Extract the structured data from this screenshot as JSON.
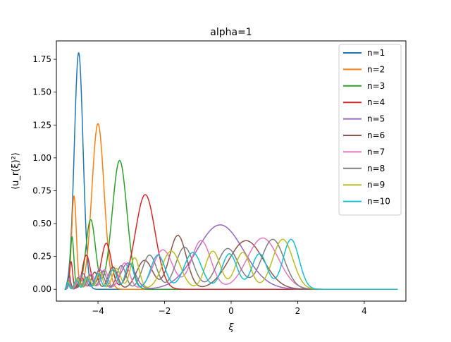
{
  "chart_data": {
    "type": "line",
    "title": "alpha=1",
    "xlabel": "ξ",
    "ylabel": "⟨u_r(ξ)²⟩",
    "xlim": [
      -5.25,
      5.25
    ],
    "ylim": [
      -0.09,
      1.89
    ],
    "x_ticks": [
      -4,
      -2,
      0,
      2,
      4
    ],
    "x_tick_labels": [
      "−4",
      "−2",
      "0",
      "2",
      "4"
    ],
    "y_ticks": [
      0.0,
      0.25,
      0.5,
      0.75,
      1.0,
      1.25,
      1.5,
      1.75
    ],
    "y_tick_labels": [
      "0.00",
      "0.25",
      "0.50",
      "0.75",
      "1.00",
      "1.25",
      "1.50",
      "1.75"
    ],
    "grid": false,
    "legend_position": "upper right",
    "x_domain": [
      -5,
      5
    ],
    "series": [
      {
        "name": "n=1",
        "color": "#1f77b4",
        "peaks": [
          {
            "x": -4.58,
            "y": 1.8
          }
        ]
      },
      {
        "name": "n=2",
        "color": "#ff7f0e",
        "peaks": [
          {
            "x": -4.72,
            "y": 0.71
          },
          {
            "x": -4.0,
            "y": 1.26
          }
        ]
      },
      {
        "name": "n=3",
        "color": "#2ca02c",
        "peaks": [
          {
            "x": -4.78,
            "y": 0.4
          },
          {
            "x": -4.22,
            "y": 0.53
          },
          {
            "x": -3.35,
            "y": 0.98
          }
        ]
      },
      {
        "name": "n=4",
        "color": "#d62728",
        "peaks": [
          {
            "x": -4.81,
            "y": 0.21
          },
          {
            "x": -4.35,
            "y": 0.26
          },
          {
            "x": -3.75,
            "y": 0.35
          },
          {
            "x": -2.58,
            "y": 0.72
          }
        ]
      },
      {
        "name": "n=5",
        "color": "#9467bd",
        "peaks": [
          {
            "x": -4.84,
            "y": 0.06
          },
          {
            "x": -4.45,
            "y": 0.12
          },
          {
            "x": -3.95,
            "y": 0.15
          },
          {
            "x": -3.1,
            "y": 0.2
          },
          {
            "x": -0.33,
            "y": 0.49
          }
        ]
      },
      {
        "name": "n=6",
        "color": "#8c564b",
        "peaks": [
          {
            "x": -4.86,
            "y": 0.11
          },
          {
            "x": -4.5,
            "y": 0.09
          },
          {
            "x": -4.1,
            "y": 0.13
          },
          {
            "x": -3.55,
            "y": 0.17
          },
          {
            "x": -2.6,
            "y": 0.22
          },
          {
            "x": -1.6,
            "y": 0.41
          },
          {
            "x": 0.45,
            "y": 0.37
          }
        ]
      },
      {
        "name": "n=7",
        "color": "#e377c2",
        "peaks": [
          {
            "x": -4.87,
            "y": 0.08
          },
          {
            "x": -4.55,
            "y": 0.1
          },
          {
            "x": -4.2,
            "y": 0.12
          },
          {
            "x": -3.8,
            "y": 0.15
          },
          {
            "x": -3.2,
            "y": 0.2
          },
          {
            "x": -2.05,
            "y": 0.3
          },
          {
            "x": -0.9,
            "y": 0.37
          },
          {
            "x": 0.95,
            "y": 0.39
          }
        ]
      },
      {
        "name": "n=8",
        "color": "#7f7f7f",
        "peaks": [
          {
            "x": -4.88,
            "y": 0.07
          },
          {
            "x": -4.6,
            "y": 0.09
          },
          {
            "x": -4.25,
            "y": 0.11
          },
          {
            "x": -3.85,
            "y": 0.14
          },
          {
            "x": -3.3,
            "y": 0.18
          },
          {
            "x": -2.45,
            "y": 0.26
          },
          {
            "x": -1.4,
            "y": 0.32
          },
          {
            "x": -0.1,
            "y": 0.31
          },
          {
            "x": 1.25,
            "y": 0.38
          }
        ]
      },
      {
        "name": "n=9",
        "color": "#bcbd22",
        "peaks": [
          {
            "x": -4.89,
            "y": 0.06
          },
          {
            "x": -4.62,
            "y": 0.08
          },
          {
            "x": -4.3,
            "y": 0.1
          },
          {
            "x": -3.95,
            "y": 0.13
          },
          {
            "x": -3.45,
            "y": 0.16
          },
          {
            "x": -2.9,
            "y": 0.24
          },
          {
            "x": -1.8,
            "y": 0.29
          },
          {
            "x": -0.55,
            "y": 0.29
          },
          {
            "x": 0.35,
            "y": 0.28
          },
          {
            "x": 1.55,
            "y": 0.38
          }
        ]
      },
      {
        "name": "n=10",
        "color": "#17becf",
        "peaks": [
          {
            "x": -4.9,
            "y": 0.05
          },
          {
            "x": -4.65,
            "y": 0.07
          },
          {
            "x": -4.35,
            "y": 0.09
          },
          {
            "x": -4.0,
            "y": 0.12
          },
          {
            "x": -3.55,
            "y": 0.15
          },
          {
            "x": -3.05,
            "y": 0.2
          },
          {
            "x": -2.2,
            "y": 0.26
          },
          {
            "x": -1.15,
            "y": 0.28
          },
          {
            "x": -0.05,
            "y": 0.27
          },
          {
            "x": 0.85,
            "y": 0.27
          },
          {
            "x": 1.8,
            "y": 0.38
          }
        ]
      }
    ]
  }
}
